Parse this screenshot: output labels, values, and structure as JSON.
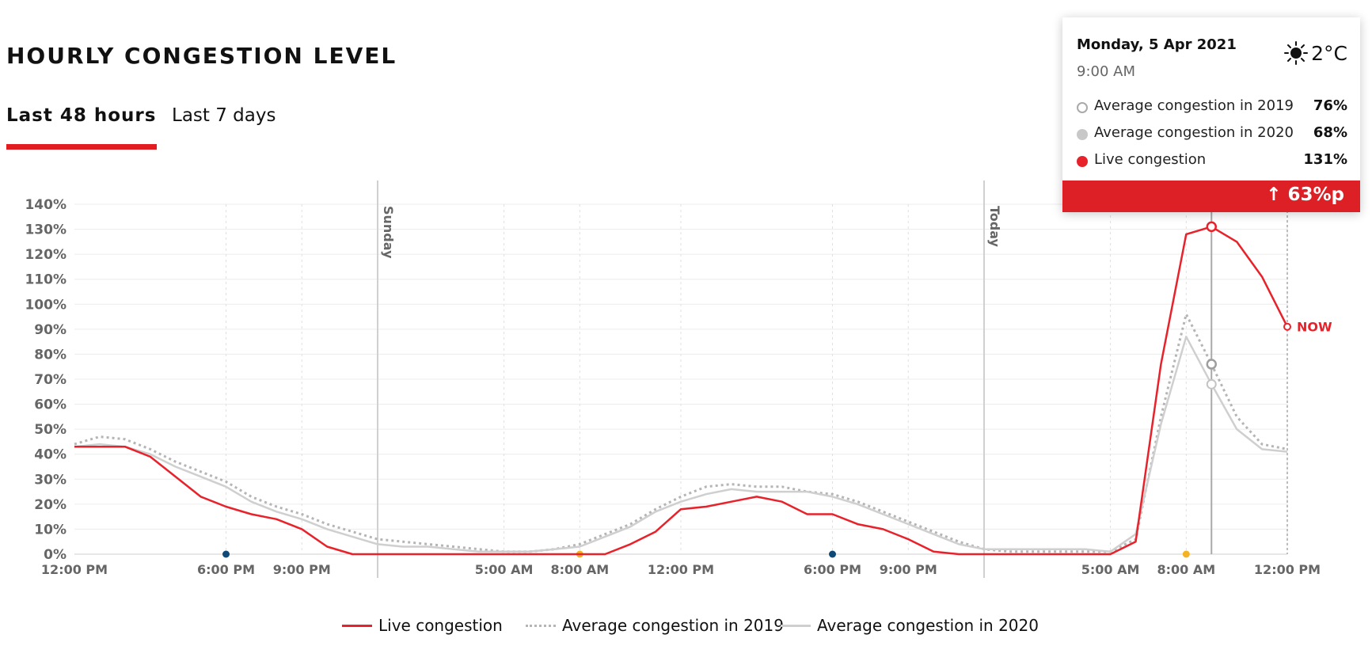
{
  "page": {
    "title": "HOURLY CONGESTION LEVEL"
  },
  "tabs": [
    {
      "label": "Last 48 hours",
      "active": true
    },
    {
      "label": "Last 7 days",
      "active": false
    }
  ],
  "colors": {
    "live": "#e8222a",
    "avg2019": "#bdbdbd",
    "avg2020": "#cccccc",
    "accent": "#dd2026",
    "night_marker": "#0d4a7a",
    "morning_marker": "#f5b323"
  },
  "tooltip": {
    "date": "Monday, 5 Apr 2021",
    "time": "9:00 AM",
    "weather_icon": "sun-icon",
    "temperature": "2°C",
    "rows": [
      {
        "label": "Average congestion in 2019",
        "value": "76%",
        "marker": "hollow-circle"
      },
      {
        "label": "Average congestion in 2020",
        "value": "68%",
        "marker": "grey-dot"
      },
      {
        "label": "Live congestion",
        "value": "131%",
        "marker": "red-dot"
      }
    ],
    "delta": "↑ 63%p"
  },
  "legend": [
    {
      "label": "Live congestion",
      "style": "solid-red"
    },
    {
      "label": "Average congestion in 2019",
      "style": "dotted-grey"
    },
    {
      "label": "Average congestion in 2020",
      "style": "solid-grey"
    }
  ],
  "chart_data": {
    "type": "line",
    "ylim": [
      0,
      140
    ],
    "yticks": [
      "0%",
      "10%",
      "20%",
      "30%",
      "40%",
      "50%",
      "60%",
      "70%",
      "80%",
      "90%",
      "100%",
      "110%",
      "120%",
      "130%",
      "140%"
    ],
    "x_tick_labels": [
      {
        "hour": 0,
        "label": "12:00 PM"
      },
      {
        "hour": 6,
        "label": "6:00 PM"
      },
      {
        "hour": 9,
        "label": "9:00 PM"
      },
      {
        "hour": 17,
        "label": "5:00 AM"
      },
      {
        "hour": 20,
        "label": "8:00 AM"
      },
      {
        "hour": 24,
        "label": "12:00 PM"
      },
      {
        "hour": 30,
        "label": "6:00 PM"
      },
      {
        "hour": 33,
        "label": "9:00 PM"
      },
      {
        "hour": 41,
        "label": "5:00 AM"
      },
      {
        "hour": 44,
        "label": "8:00 AM"
      },
      {
        "hour": 48,
        "label": "12:00 PM"
      }
    ],
    "day_markers": [
      {
        "hour": 12,
        "label": "Sunday"
      },
      {
        "hour": 36,
        "label": "Today"
      }
    ],
    "time_dots": [
      {
        "hour": 6,
        "kind": "night"
      },
      {
        "hour": 20,
        "kind": "morning"
      },
      {
        "hour": 30,
        "kind": "night"
      },
      {
        "hour": 44,
        "kind": "morning"
      }
    ],
    "highlight_hour": 45,
    "now_hour": 48,
    "now_label": "NOW",
    "series": [
      {
        "name": "Average congestion in 2019",
        "style": "dotted",
        "x": [
          0,
          1,
          2,
          3,
          4,
          5,
          6,
          7,
          8,
          9,
          10,
          11,
          12,
          13,
          14,
          15,
          16,
          17,
          18,
          19,
          20,
          21,
          22,
          23,
          24,
          25,
          26,
          27,
          28,
          29,
          30,
          31,
          32,
          33,
          34,
          35,
          36,
          37,
          38,
          39,
          40,
          41,
          42,
          43,
          44,
          45,
          46,
          47,
          48
        ],
        "values": [
          44,
          47,
          46,
          42,
          37,
          33,
          29,
          23,
          19,
          16,
          12,
          9,
          6,
          5,
          4,
          3,
          2,
          1,
          1,
          2,
          4,
          8,
          12,
          18,
          23,
          27,
          28,
          27,
          27,
          25,
          24,
          21,
          17,
          13,
          9,
          5,
          2,
          1,
          1,
          1,
          1,
          1,
          6,
          55,
          96,
          76,
          55,
          44,
          42
        ]
      },
      {
        "name": "Average congestion in 2020",
        "style": "solid",
        "x": [
          0,
          1,
          2,
          3,
          4,
          5,
          6,
          7,
          8,
          9,
          10,
          11,
          12,
          13,
          14,
          15,
          16,
          17,
          18,
          19,
          20,
          21,
          22,
          23,
          24,
          25,
          26,
          27,
          28,
          29,
          30,
          31,
          32,
          33,
          34,
          35,
          36,
          37,
          38,
          39,
          40,
          41,
          42,
          43,
          44,
          45,
          46,
          47,
          48
        ],
        "values": [
          43,
          44,
          43,
          40,
          35,
          31,
          27,
          21,
          17,
          14,
          10,
          7,
          4,
          3,
          3,
          2,
          1,
          1,
          1,
          2,
          3,
          7,
          11,
          17,
          21,
          24,
          26,
          25,
          25,
          25,
          23,
          20,
          16,
          12,
          8,
          4,
          2,
          2,
          2,
          2,
          2,
          1,
          8,
          52,
          87,
          68,
          50,
          42,
          41
        ]
      },
      {
        "name": "Live congestion",
        "style": "solid-red",
        "x": [
          0,
          1,
          2,
          3,
          4,
          5,
          6,
          7,
          8,
          9,
          10,
          11,
          12,
          13,
          14,
          15,
          16,
          17,
          18,
          19,
          20,
          21,
          22,
          23,
          24,
          25,
          26,
          27,
          28,
          29,
          30,
          31,
          32,
          33,
          34,
          35,
          36,
          37,
          38,
          39,
          40,
          41,
          42,
          43,
          44,
          45,
          46,
          47,
          48
        ],
        "values": [
          43,
          43,
          43,
          39,
          31,
          23,
          19,
          16,
          14,
          10,
          3,
          0,
          0,
          0,
          0,
          0,
          0,
          0,
          0,
          0,
          0,
          0,
          4,
          9,
          18,
          19,
          21,
          23,
          21,
          16,
          16,
          12,
          10,
          6,
          1,
          0,
          0,
          0,
          0,
          0,
          0,
          0,
          5,
          76,
          128,
          131,
          125,
          111,
          91
        ]
      }
    ]
  }
}
